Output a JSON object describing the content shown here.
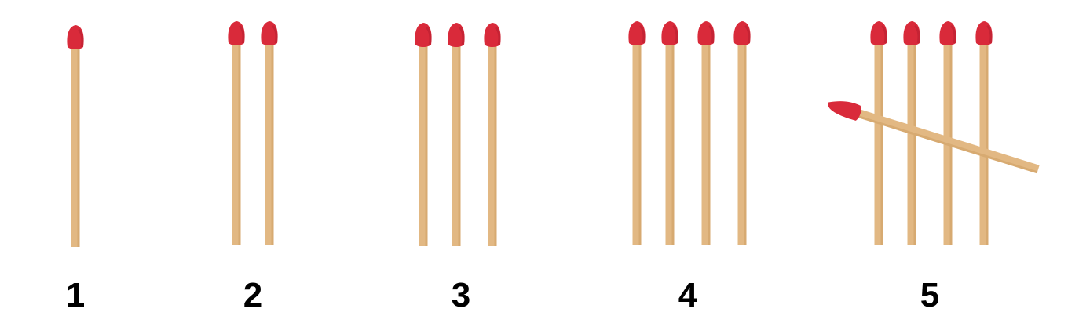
{
  "title": "",
  "colors": {
    "background": "#ffffff",
    "match_head": "#d92a3a",
    "match_head_shadow": "#b81f30",
    "match_stick": "#e2b883",
    "match_stick_edge": "#c9995c",
    "label": "#000000"
  },
  "groups": [
    {
      "label": "1",
      "match_count": 1,
      "crossed": false
    },
    {
      "label": "2",
      "match_count": 2,
      "crossed": false
    },
    {
      "label": "3",
      "match_count": 3,
      "crossed": false
    },
    {
      "label": "4",
      "match_count": 4,
      "crossed": false
    },
    {
      "label": "5",
      "match_count": 5,
      "crossed": true
    }
  ],
  "icons": {
    "match": "matchstick-icon"
  }
}
